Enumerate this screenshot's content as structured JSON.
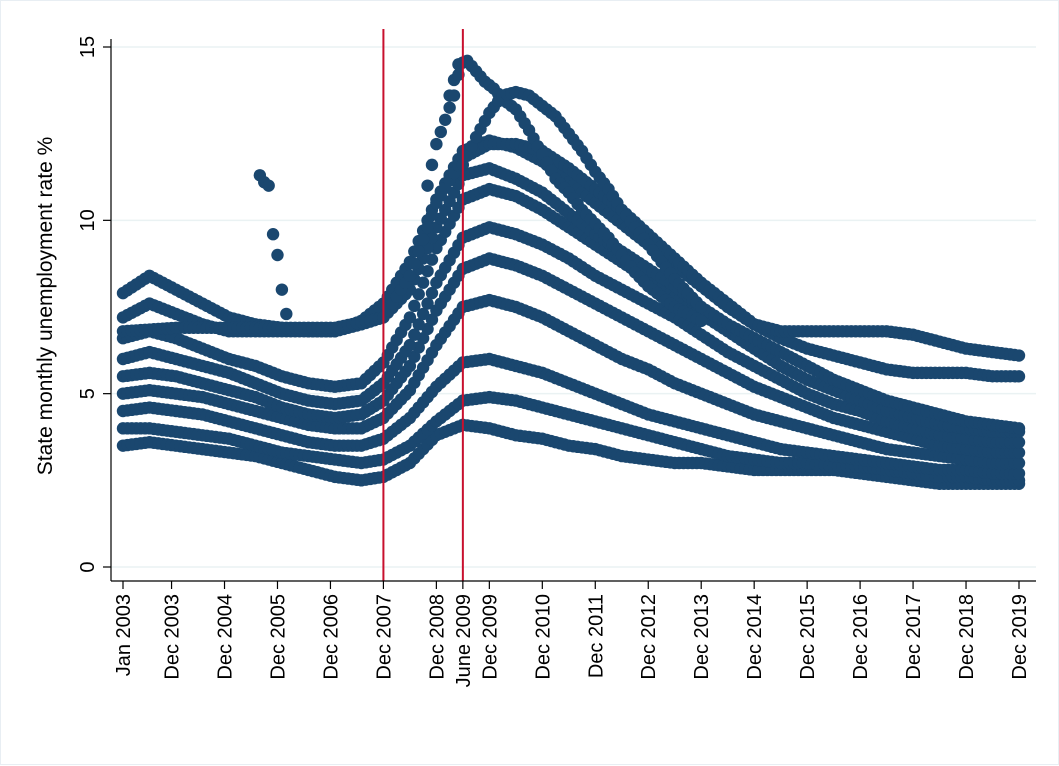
{
  "chart_data": {
    "type": "scatter",
    "title": "",
    "xlabel": "",
    "ylabel": "State monthly unemployment rate %",
    "ylim": [
      0,
      15
    ],
    "y_ticks": [
      0,
      5,
      10,
      15
    ],
    "xlim": [
      "2003-01",
      "2019-12"
    ],
    "x_ticks": [
      {
        "date": "2003-01",
        "label": "Jan 2003"
      },
      {
        "date": "2003-12",
        "label": "Dec 2003"
      },
      {
        "date": "2004-12",
        "label": "Dec 2004"
      },
      {
        "date": "2005-12",
        "label": "Dec 2005"
      },
      {
        "date": "2006-12",
        "label": "Dec 2006"
      },
      {
        "date": "2007-12",
        "label": "Dec 2007"
      },
      {
        "date": "2008-12",
        "label": "Dec 2008"
      },
      {
        "date": "2009-06",
        "label": "June 2009"
      },
      {
        "date": "2009-12",
        "label": "Dec 2009"
      },
      {
        "date": "2010-12",
        "label": "Dec 2010"
      },
      {
        "date": "2011-12",
        "label": "Dec 2011"
      },
      {
        "date": "2012-12",
        "label": "Dec 2012"
      },
      {
        "date": "2013-12",
        "label": "Dec 2013"
      },
      {
        "date": "2014-12",
        "label": "Dec 2014"
      },
      {
        "date": "2015-12",
        "label": "Dec 2015"
      },
      {
        "date": "2016-12",
        "label": "Dec 2016"
      },
      {
        "date": "2017-12",
        "label": "Dec 2017"
      },
      {
        "date": "2018-12",
        "label": "Dec 2018"
      },
      {
        "date": "2019-12",
        "label": "Dec 2019"
      }
    ],
    "reference_lines": [
      {
        "date": "2007-12",
        "color": "#c8102e"
      },
      {
        "date": "2009-06",
        "color": "#c8102e"
      }
    ],
    "marker_color": "#1a476f",
    "grid": true,
    "legend": "none",
    "series": [
      {
        "x": [
          "2003-01",
          "2003-07",
          "2004-01",
          "2004-07",
          "2005-01",
          "2005-07",
          "2006-01",
          "2006-07",
          "2007-01",
          "2007-07",
          "2007-12",
          "2008-06",
          "2008-12",
          "2009-06",
          "2009-12",
          "2010-06",
          "2010-12",
          "2011-06",
          "2011-12",
          "2012-06",
          "2012-12",
          "2013-06",
          "2013-12",
          "2014-06",
          "2014-12",
          "2015-06",
          "2015-12",
          "2016-06",
          "2016-12",
          "2017-06",
          "2017-12",
          "2018-06",
          "2018-12",
          "2019-06",
          "2019-12"
        ],
        "y": [
          3.5,
          3.6,
          3.5,
          3.4,
          3.3,
          3.2,
          3.0,
          2.8,
          2.6,
          2.5,
          2.6,
          3.0,
          3.8,
          4.1,
          4.0,
          3.8,
          3.7,
          3.5,
          3.4,
          3.2,
          3.1,
          3.0,
          3.0,
          2.9,
          2.8,
          2.8,
          2.8,
          2.8,
          2.7,
          2.6,
          2.5,
          2.4,
          2.4,
          2.4,
          2.4
        ]
      },
      {
        "x": [
          "2003-01",
          "2003-07",
          "2004-01",
          "2004-07",
          "2005-01",
          "2005-07",
          "2006-01",
          "2006-07",
          "2007-01",
          "2007-07",
          "2007-12",
          "2008-06",
          "2008-12",
          "2009-06",
          "2009-12",
          "2010-06",
          "2010-12",
          "2011-06",
          "2011-12",
          "2012-06",
          "2012-12",
          "2013-06",
          "2013-12",
          "2014-06",
          "2014-12",
          "2015-06",
          "2015-12",
          "2016-06",
          "2016-12",
          "2017-06",
          "2017-12",
          "2018-06",
          "2018-12",
          "2019-06",
          "2019-12"
        ],
        "y": [
          4.0,
          4.0,
          3.9,
          3.8,
          3.7,
          3.5,
          3.3,
          3.2,
          3.1,
          3.0,
          3.1,
          3.5,
          4.2,
          4.8,
          4.9,
          4.8,
          4.6,
          4.4,
          4.2,
          4.0,
          3.8,
          3.6,
          3.4,
          3.2,
          3.1,
          3.0,
          3.0,
          2.9,
          2.9,
          2.8,
          2.7,
          2.6,
          2.6,
          2.5,
          2.5
        ]
      },
      {
        "x": [
          "2003-01",
          "2003-07",
          "2004-01",
          "2004-07",
          "2005-01",
          "2005-07",
          "2006-01",
          "2006-07",
          "2007-01",
          "2007-07",
          "2007-12",
          "2008-06",
          "2008-12",
          "2009-06",
          "2009-12",
          "2010-06",
          "2010-12",
          "2011-06",
          "2011-12",
          "2012-06",
          "2012-12",
          "2013-06",
          "2013-12",
          "2014-06",
          "2014-12",
          "2015-06",
          "2015-12",
          "2016-06",
          "2016-12",
          "2017-06",
          "2017-12",
          "2018-06",
          "2018-12",
          "2019-06",
          "2019-12"
        ],
        "y": [
          4.5,
          4.6,
          4.5,
          4.4,
          4.2,
          4.0,
          3.8,
          3.6,
          3.5,
          3.5,
          3.7,
          4.3,
          5.2,
          5.9,
          6.0,
          5.8,
          5.6,
          5.3,
          5.0,
          4.7,
          4.4,
          4.2,
          4.0,
          3.8,
          3.6,
          3.4,
          3.3,
          3.2,
          3.1,
          3.0,
          2.9,
          2.8,
          2.8,
          2.7,
          2.7
        ]
      },
      {
        "x": [
          "2003-01",
          "2003-07",
          "2004-01",
          "2004-07",
          "2005-01",
          "2005-07",
          "2006-01",
          "2006-07",
          "2007-01",
          "2007-07",
          "2007-12",
          "2008-06",
          "2008-12",
          "2009-06",
          "2009-12",
          "2010-06",
          "2010-12",
          "2011-06",
          "2011-12",
          "2012-06",
          "2012-12",
          "2013-06",
          "2013-12",
          "2014-06",
          "2014-12",
          "2015-06",
          "2015-12",
          "2016-06",
          "2016-12",
          "2017-06",
          "2017-12",
          "2018-06",
          "2018-12",
          "2019-06",
          "2019-12"
        ],
        "y": [
          5.0,
          5.1,
          5.0,
          4.9,
          4.7,
          4.5,
          4.3,
          4.1,
          4.0,
          4.0,
          4.3,
          5.1,
          6.4,
          7.5,
          7.7,
          7.5,
          7.2,
          6.8,
          6.4,
          6.0,
          5.7,
          5.3,
          5.0,
          4.7,
          4.4,
          4.2,
          4.0,
          3.8,
          3.6,
          3.4,
          3.3,
          3.2,
          3.1,
          3.0,
          3.0
        ]
      },
      {
        "x": [
          "2003-01",
          "2003-07",
          "2004-01",
          "2004-07",
          "2005-01",
          "2005-07",
          "2006-01",
          "2006-07",
          "2007-01",
          "2007-07",
          "2007-12",
          "2008-06",
          "2008-12",
          "2009-06",
          "2009-12",
          "2010-06",
          "2010-12",
          "2011-06",
          "2011-12",
          "2012-06",
          "2012-12",
          "2013-06",
          "2013-12",
          "2014-06",
          "2014-12",
          "2015-06",
          "2015-12",
          "2016-06",
          "2016-12",
          "2017-06",
          "2017-12",
          "2018-06",
          "2018-12",
          "2019-06",
          "2019-12"
        ],
        "y": [
          5.5,
          5.6,
          5.5,
          5.3,
          5.1,
          4.9,
          4.6,
          4.4,
          4.3,
          4.4,
          4.8,
          5.8,
          7.4,
          8.6,
          8.9,
          8.7,
          8.4,
          8.0,
          7.6,
          7.2,
          6.8,
          6.4,
          6.0,
          5.6,
          5.2,
          4.9,
          4.6,
          4.3,
          4.1,
          3.9,
          3.7,
          3.5,
          3.4,
          3.3,
          3.3
        ]
      },
      {
        "x": [
          "2003-01",
          "2003-07",
          "2004-01",
          "2004-07",
          "2005-01",
          "2005-07",
          "2006-01",
          "2006-07",
          "2007-01",
          "2007-07",
          "2007-12",
          "2008-06",
          "2008-12",
          "2009-06",
          "2009-12",
          "2010-06",
          "2010-12",
          "2011-06",
          "2011-12",
          "2012-06",
          "2012-12",
          "2013-06",
          "2013-12",
          "2014-06",
          "2014-12",
          "2015-06",
          "2015-12",
          "2016-06",
          "2016-12",
          "2017-06",
          "2017-12",
          "2018-06",
          "2018-12",
          "2019-06",
          "2019-12"
        ],
        "y": [
          6.0,
          6.2,
          6.0,
          5.8,
          5.6,
          5.3,
          5.0,
          4.8,
          4.7,
          4.8,
          5.3,
          6.4,
          8.2,
          9.5,
          9.8,
          9.6,
          9.3,
          8.9,
          8.4,
          8.0,
          7.6,
          7.2,
          6.7,
          6.2,
          5.8,
          5.4,
          5.0,
          4.7,
          4.5,
          4.2,
          4.0,
          3.8,
          3.7,
          3.6,
          3.6
        ]
      },
      {
        "x": [
          "2003-01",
          "2003-07",
          "2004-01",
          "2004-07",
          "2005-01",
          "2005-07",
          "2006-01",
          "2006-07",
          "2007-01",
          "2007-07",
          "2007-12",
          "2008-06",
          "2008-12",
          "2009-06",
          "2009-12",
          "2010-06",
          "2010-12",
          "2011-06",
          "2011-12",
          "2012-06",
          "2012-12",
          "2013-06",
          "2013-12",
          "2014-06",
          "2014-12",
          "2015-06",
          "2015-12",
          "2016-06",
          "2016-12",
          "2017-06",
          "2017-12",
          "2018-06",
          "2018-12",
          "2019-06",
          "2019-12"
        ],
        "y": [
          6.6,
          6.8,
          6.6,
          6.3,
          6.0,
          5.8,
          5.5,
          5.3,
          5.2,
          5.3,
          5.9,
          7.2,
          9.2,
          10.6,
          10.9,
          10.7,
          10.3,
          9.8,
          9.3,
          8.8,
          8.3,
          7.8,
          7.3,
          6.8,
          6.3,
          5.8,
          5.4,
          5.1,
          4.8,
          4.5,
          4.3,
          4.1,
          4.0,
          3.9,
          3.9
        ]
      },
      {
        "x": [
          "2003-01",
          "2003-07",
          "2004-01",
          "2004-07",
          "2005-01",
          "2005-07",
          "2006-01",
          "2006-07",
          "2007-01",
          "2007-07",
          "2007-12",
          "2008-06",
          "2008-12",
          "2009-06",
          "2009-12",
          "2010-06",
          "2010-12",
          "2011-06",
          "2011-12",
          "2012-06",
          "2012-12",
          "2013-06",
          "2013-12",
          "2014-06",
          "2014-12",
          "2015-06",
          "2015-12",
          "2016-06",
          "2016-12",
          "2017-06",
          "2017-12",
          "2018-06",
          "2018-12",
          "2019-06",
          "2019-12"
        ],
        "y": [
          7.2,
          7.6,
          7.3,
          7.0,
          6.8,
          6.8,
          6.8,
          6.8,
          6.8,
          7.0,
          7.2,
          8.0,
          9.8,
          11.3,
          11.5,
          11.2,
          10.8,
          10.2,
          9.6,
          9.1,
          8.6,
          8.1,
          7.5,
          7.0,
          6.6,
          6.2,
          5.8,
          5.4,
          5.1,
          4.8,
          4.6,
          4.4,
          4.2,
          4.1,
          4.0
        ]
      },
      {
        "x": [
          "2003-01",
          "2003-07",
          "2004-01",
          "2004-07",
          "2005-01",
          "2005-07",
          "2006-01",
          "2006-07",
          "2007-01",
          "2007-07",
          "2007-12",
          "2008-06",
          "2008-12",
          "2009-06",
          "2009-12",
          "2010-06",
          "2010-12",
          "2011-06",
          "2011-12",
          "2012-06",
          "2012-12",
          "2013-06",
          "2013-12",
          "2014-06",
          "2014-12",
          "2015-06",
          "2015-12",
          "2016-06",
          "2016-12",
          "2017-06",
          "2017-12",
          "2018-06",
          "2018-12",
          "2019-06",
          "2019-12"
        ],
        "y": [
          7.9,
          8.4,
          8.0,
          7.6,
          7.2,
          7.0,
          6.9,
          6.8,
          6.8,
          7.1,
          7.6,
          8.8,
          10.6,
          12.0,
          12.3,
          12.1,
          11.7,
          11.1,
          10.5,
          9.9,
          9.3,
          8.7,
          8.1,
          7.5,
          7.0,
          6.6,
          6.3,
          6.1,
          5.9,
          5.7,
          5.6,
          5.6,
          5.6,
          5.5,
          5.5
        ]
      },
      {
        "x": [
          "2003-01",
          "2004-01",
          "2005-01",
          "2006-01",
          "2007-01",
          "2007-12",
          "2008-06",
          "2008-12",
          "2009-06",
          "2009-12",
          "2010-06",
          "2010-12",
          "2011-06",
          "2011-12",
          "2012-06",
          "2012-12",
          "2013-06",
          "2013-12",
          "2014-06",
          "2014-12",
          "2015-06",
          "2015-12",
          "2016-06",
          "2016-12",
          "2017-06",
          "2017-12",
          "2018-06",
          "2018-12",
          "2019-06",
          "2019-12"
        ],
        "y": [
          6.8,
          6.9,
          6.9,
          6.9,
          6.9,
          7.2,
          8.4,
          10.5,
          11.8,
          12.2,
          12.2,
          12.0,
          11.5,
          10.9,
          10.3,
          9.6,
          8.9,
          8.2,
          7.6,
          7.0,
          6.8,
          6.8,
          6.8,
          6.8,
          6.8,
          6.7,
          6.5,
          6.3,
          6.2,
          6.1
        ]
      },
      {
        "x": [
          "2009-03",
          "2009-05",
          "2009-07",
          "2009-09",
          "2009-11",
          "2010-01",
          "2010-03",
          "2010-06",
          "2010-09",
          "2010-12",
          "2011-03",
          "2011-06",
          "2011-09",
          "2011-12",
          "2012-03",
          "2012-06",
          "2012-09",
          "2012-12",
          "2013-03",
          "2013-06",
          "2013-09",
          "2013-12"
        ],
        "y": [
          13.6,
          14.5,
          14.6,
          14.3,
          14.0,
          13.8,
          13.5,
          13.2,
          12.6,
          11.9,
          11.2,
          10.8,
          10.3,
          9.9,
          9.5,
          9.0,
          8.5,
          8.1,
          7.8,
          7.5,
          7.3,
          7.1
        ]
      },
      {
        "x": [
          "2009-06",
          "2009-09",
          "2009-12",
          "2010-03",
          "2010-06",
          "2010-09",
          "2010-12",
          "2011-03",
          "2011-06",
          "2011-09",
          "2011-12",
          "2012-03",
          "2012-06",
          "2012-09",
          "2012-12",
          "2013-03",
          "2013-06",
          "2013-09",
          "2013-12"
        ],
        "y": [
          11.6,
          12.4,
          13.1,
          13.6,
          13.7,
          13.6,
          13.3,
          13.0,
          12.5,
          12.0,
          11.4,
          10.9,
          10.3,
          9.8,
          9.3,
          8.8,
          8.3,
          7.9,
          7.5
        ]
      },
      {
        "x": [
          "2005-08",
          "2005-09",
          "2005-10",
          "2005-11",
          "2005-12",
          "2006-01",
          "2006-02"
        ],
        "y": [
          11.3,
          11.1,
          11.0,
          9.6,
          9.0,
          8.0,
          7.3
        ]
      },
      {
        "x": [
          "2008-10",
          "2008-12",
          "2009-02",
          "2009-04",
          "2009-05"
        ],
        "y": [
          11.0,
          12.2,
          12.9,
          13.6,
          14.2
        ]
      }
    ]
  }
}
